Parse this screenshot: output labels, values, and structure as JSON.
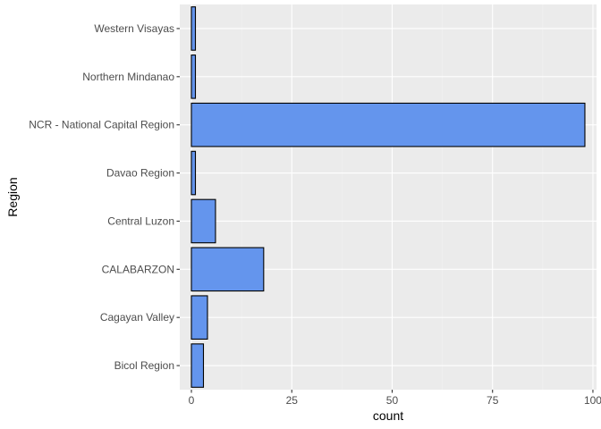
{
  "chart_data": {
    "type": "bar",
    "orientation": "horizontal",
    "categories": [
      "Bicol Region",
      "Cagayan Valley",
      "CALABARZON",
      "Central Luzon",
      "Davao Region",
      "NCR - National Capital Region",
      "Northern Mindanao",
      "Western Visayas"
    ],
    "values": [
      3,
      4,
      18,
      6,
      1,
      98,
      1,
      1
    ],
    "xlabel": "count",
    "ylabel": "Region",
    "xlim": [
      -2.9,
      100.9
    ],
    "xticks": [
      0,
      25,
      50,
      75,
      100
    ],
    "grid": true,
    "colors": {
      "bar_fill": "#6495ED",
      "bar_stroke": "#000000",
      "panel_background": "#EBEBEB",
      "grid_major": "#FFFFFF",
      "grid_minor": "#F2F2F2",
      "tick_text": "#4D4D4D"
    }
  }
}
